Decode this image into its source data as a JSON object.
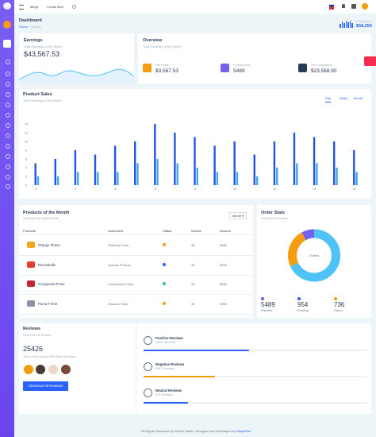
{
  "topbar": {
    "menus": [
      "Mega",
      "Create New"
    ],
    "stat_label": "LAST MONTH",
    "stat_value": "$58,256"
  },
  "breadcrumb": {
    "title": "Dashboard",
    "home": "Home",
    "current": "Library"
  },
  "earnings": {
    "title": "Earnings",
    "subtitle": "Total Earnings of the Month",
    "amount": "$43,567.53"
  },
  "overview": {
    "title": "Overview",
    "subtitle": "Total Earnings of the Month",
    "items": [
      {
        "label": "Net Profit",
        "value": "$3,567.53",
        "color": "#f59d0e"
      },
      {
        "label": "Product sold",
        "value": "5489",
        "color": "#7460ee"
      },
      {
        "label": "New Customers",
        "value": "$23,568.90",
        "color": "#2b3a55"
      }
    ]
  },
  "product_sales": {
    "title": "Product Sales",
    "subtitle": "Total Earnings of the Month",
    "tabs": [
      "Day",
      "Week",
      "Month"
    ],
    "chart": {
      "type": "bar",
      "categories": [
        "0",
        null,
        "2",
        null,
        "4",
        null,
        "6",
        null,
        "8",
        null,
        "10",
        null,
        "12",
        null,
        "14",
        null,
        "16"
      ],
      "series": [
        {
          "color": "#2353e0",
          "values": [
            5,
            6,
            8,
            7,
            9,
            10,
            14,
            12,
            11,
            9,
            10,
            7,
            10,
            12,
            11,
            10,
            8
          ]
        },
        {
          "color": "#3ea6f5",
          "values": [
            2,
            2,
            3,
            3,
            3,
            5,
            6,
            5,
            4,
            3,
            3,
            2,
            4,
            5,
            5,
            4,
            3
          ]
        }
      ],
      "ylim": [
        0,
        14
      ],
      "yticks": [
        0,
        2,
        4,
        6,
        8,
        10,
        12,
        14
      ]
    }
  },
  "products": {
    "title": "Products of the Month",
    "subtitle": "Overview of Latest Month",
    "filter": "Month",
    "columns": [
      "Products",
      "Customers",
      "Status",
      "Invoice",
      "Amount"
    ],
    "rows": [
      {
        "product": "Orange Shoes",
        "customer": "Relaxing Chair",
        "status_color": "#f59d0e",
        "invoice": "35",
        "amount": "$96K",
        "icon_color": "#f5a623"
      },
      {
        "product": "Red Sandle",
        "customer": "Dummy Product",
        "status_color": "#2962ff",
        "invoice": "35",
        "amount": "$96K",
        "icon_color": "#e53935"
      },
      {
        "product": "Gourgeous Purse",
        "customer": "Comfortable Chair",
        "status_color": "#26c6a0",
        "invoice": "35",
        "amount": "$96K",
        "icon_color": "#c0283a"
      },
      {
        "product": "Puma T-shirt",
        "customer": "Wooden Chair",
        "status_color": "#f59d0e",
        "invoice": "35",
        "amount": "$96K",
        "icon_color": "#8a94a6"
      }
    ]
  },
  "order_stats": {
    "title": "Order Stats",
    "subtitle": "Overview of orders",
    "center_label": "Orders",
    "segments": [
      {
        "value": 68,
        "color": "#4fc3f7"
      },
      {
        "value": 24,
        "color": "#f59d0e"
      },
      {
        "value": 8,
        "color": "#7460ee"
      }
    ],
    "legend": [
      {
        "value": "5489",
        "label": "Success",
        "color": "#7460ee"
      },
      {
        "value": "954",
        "label": "Pending",
        "color": "#2962ff"
      },
      {
        "value": "736",
        "label": "Failed",
        "color": "#f59d0e"
      }
    ]
  },
  "reviews": {
    "title": "Reviews",
    "subtitle": "Overview of Review",
    "total": "25426",
    "note": "This month we got 346 New Reviews",
    "button": "Checkout All Reviews",
    "items": [
      {
        "title": "Positive Reviews",
        "count": "25547 Reviews",
        "progress": 47,
        "color": "#2962ff"
      },
      {
        "title": "Negative Reviews",
        "count": "5547 Reviews",
        "progress": 32,
        "color": "#f59d0e"
      },
      {
        "title": "Neutral Reviews",
        "count": "547 Reviews",
        "progress": 20,
        "color": "#2962ff"
      }
    ]
  },
  "footer": {
    "text": "All Rights Reserved by Xtreme admin. Designed and Developed by",
    "link": "WrapPixel."
  }
}
